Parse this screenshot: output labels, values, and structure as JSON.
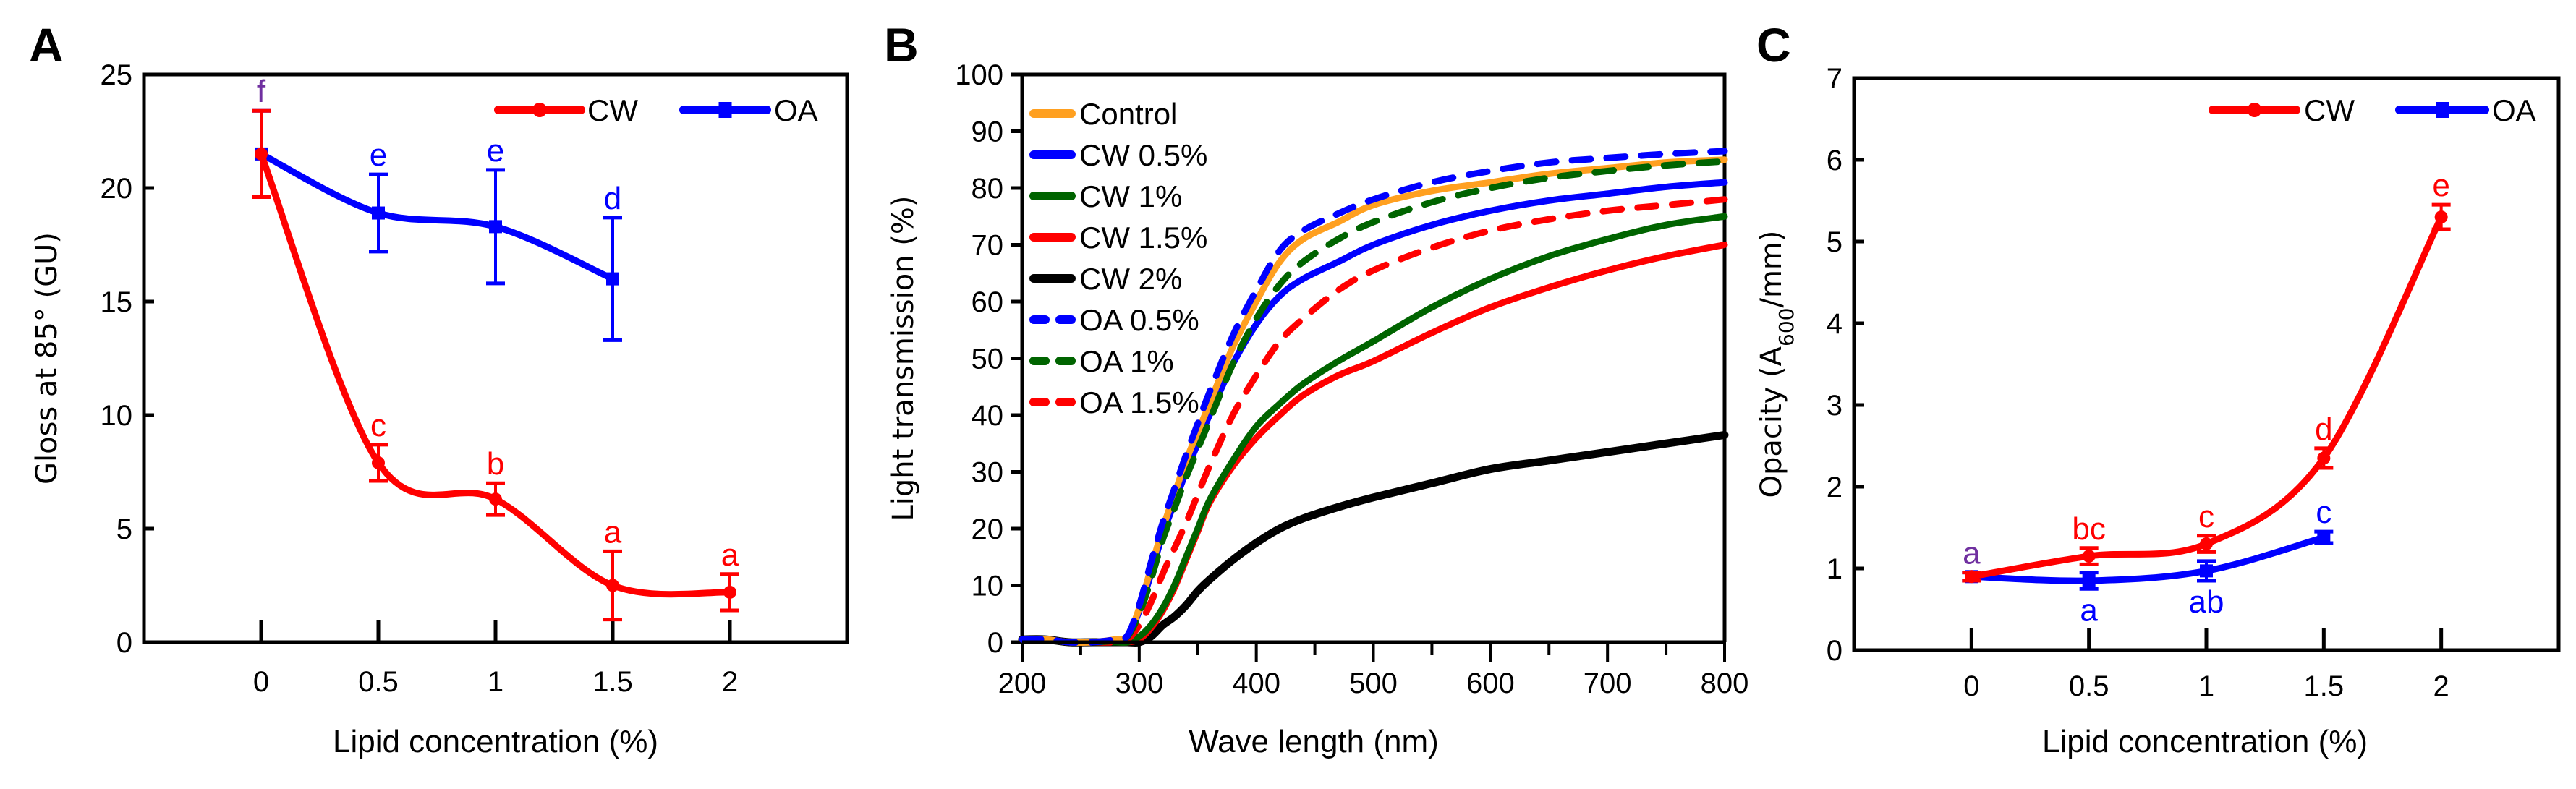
{
  "colors": {
    "red": "#FF0000",
    "blue": "#0000FF",
    "green": "#006400",
    "orange": "#FFA020",
    "black": "#000000",
    "shared_letter": "#7030A0"
  },
  "chart_data": [
    {
      "panel": "A",
      "type": "line",
      "smoothed": true,
      "xlabel": "Lipid concentration (%)",
      "ylabel": "Gloss at 85° (GU)",
      "xticks": [
        "0",
        "0.5",
        "1",
        "1.5",
        "2"
      ],
      "xlim": [
        -0.5,
        2.5
      ],
      "ylim": [
        0,
        25
      ],
      "yticks": [
        0,
        5,
        10,
        15,
        20,
        25
      ],
      "grid": false,
      "legend": "top-right",
      "series": [
        {
          "name": "CW",
          "color": "#FF0000",
          "marker": "circle",
          "x": [
            0,
            0.5,
            1,
            1.5,
            2
          ],
          "y": [
            21.5,
            7.9,
            6.3,
            2.5,
            2.2
          ],
          "error": [
            1.9,
            0.8,
            0.7,
            1.5,
            0.8
          ],
          "letters": [
            "f",
            "c",
            "b",
            "a",
            "a"
          ],
          "letter_position": "above"
        },
        {
          "name": "OA",
          "color": "#0000FF",
          "marker": "square",
          "x": [
            0,
            0.5,
            1,
            1.5
          ],
          "y": [
            21.5,
            18.9,
            18.3,
            16.0
          ],
          "error": [
            1.9,
            1.7,
            2.5,
            2.7
          ],
          "letters": [
            "f",
            "e",
            "e",
            "d"
          ],
          "letter_position": "above"
        }
      ]
    },
    {
      "panel": "B",
      "type": "line",
      "xlabel": "Wave length (nm)",
      "ylabel": "Light transmission (%)",
      "xlim": [
        200,
        800
      ],
      "ylim": [
        0,
        100
      ],
      "xticks": [
        200,
        300,
        400,
        500,
        600,
        700,
        800
      ],
      "yticks": [
        0,
        10,
        20,
        30,
        40,
        50,
        60,
        70,
        80,
        90,
        100
      ],
      "grid": false,
      "legend": "top-left",
      "x": [
        200,
        220,
        240,
        260,
        280,
        290,
        300,
        310,
        320,
        330,
        340,
        350,
        360,
        380,
        400,
        420,
        440,
        470,
        500,
        550,
        600,
        650,
        700,
        750,
        800
      ],
      "series": [
        {
          "name": "Control",
          "color": "#FFA020",
          "dash": "solid",
          "values": [
            0.5,
            0.5,
            0,
            0,
            0.5,
            1,
            6,
            13,
            20,
            26,
            32,
            37,
            42,
            52,
            60,
            67,
            71,
            74,
            77,
            79.5,
            81,
            82.5,
            83.5,
            84.5,
            85
          ]
        },
        {
          "name": "CW 0.5%",
          "color": "#0000FF",
          "dash": "solid",
          "values": [
            0.5,
            0.5,
            0,
            0,
            0.3,
            1,
            5.5,
            12,
            19,
            24.5,
            30,
            35,
            40,
            49,
            56,
            61,
            64,
            67,
            70,
            73.5,
            76,
            77.8,
            79,
            80.2,
            81
          ]
        },
        {
          "name": "CW 1%",
          "color": "#006400",
          "dash": "solid",
          "values": [
            0.5,
            0.5,
            0,
            0,
            0,
            0,
            1,
            3,
            6,
            10,
            15,
            20,
            25,
            32,
            38,
            42,
            45.5,
            49.5,
            53,
            59,
            64,
            68,
            71,
            73.5,
            75
          ]
        },
        {
          "name": "CW 1.5%",
          "color": "#FF0000",
          "dash": "solid",
          "values": [
            0.5,
            0.5,
            0,
            0,
            0,
            0,
            0.5,
            2.5,
            5.5,
            9.5,
            14.5,
            19.5,
            24.5,
            31,
            36,
            40,
            43.5,
            47,
            49.5,
            54.5,
            59,
            62.5,
            65.5,
            68,
            70
          ]
        },
        {
          "name": "CW 2%",
          "color": "#000000",
          "dash": "solid",
          "values": [
            0.5,
            0.5,
            0,
            0,
            0,
            0,
            0,
            1,
            3,
            4.5,
            6.5,
            9,
            11,
            14.5,
            17.5,
            20,
            21.8,
            23.8,
            25.5,
            28,
            30.5,
            32,
            33.5,
            35,
            36.5
          ]
        },
        {
          "name": "OA 0.5%",
          "color": "#0000FF",
          "dash": "dashed",
          "values": [
            0.5,
            0.5,
            0,
            0,
            0.5,
            1.2,
            6.5,
            14,
            21,
            27,
            33,
            38.5,
            44,
            54,
            62,
            69,
            72.5,
            75.5,
            78,
            81,
            83,
            84.5,
            85.3,
            86,
            86.5
          ]
        },
        {
          "name": "OA 1%",
          "color": "#006400",
          "dash": "dashed",
          "values": [
            0.5,
            0.5,
            0,
            0,
            0.3,
            1,
            5,
            11,
            18,
            23.5,
            29,
            34,
            39,
            49,
            57,
            63,
            67,
            71,
            74,
            77.5,
            80,
            81.8,
            83,
            84,
            84.7
          ]
        },
        {
          "name": "OA 1.5%",
          "color": "#FF0000",
          "dash": "dashed",
          "values": [
            0.5,
            0.5,
            0,
            0,
            0,
            0.5,
            3,
            7,
            12,
            16.5,
            21,
            26,
            31,
            40,
            47,
            53,
            57,
            62,
            65.5,
            69.5,
            72.5,
            74.5,
            76,
            77,
            78
          ]
        }
      ]
    },
    {
      "panel": "C",
      "type": "line",
      "smoothed": true,
      "xlabel": "Lipid concentration (%)",
      "ylabel": {
        "prefix": "Opacity (A",
        "sub": "600",
        "suffix": "/mm)"
      },
      "xticks": [
        "0",
        "0.5",
        "1",
        "1.5",
        "2"
      ],
      "xlim": [
        -0.5,
        2.5
      ],
      "ylim": [
        0,
        7
      ],
      "yticks": [
        0,
        1,
        2,
        3,
        4,
        5,
        6,
        7
      ],
      "grid": false,
      "legend": "top-right",
      "series": [
        {
          "name": "CW",
          "color": "#FF0000",
          "marker": "circle",
          "x": [
            0,
            0.5,
            1,
            1.5,
            2
          ],
          "y": [
            0.9,
            1.15,
            1.3,
            2.35,
            5.3
          ],
          "error": [
            0.05,
            0.1,
            0.1,
            0.12,
            0.15
          ],
          "letters": [
            "a",
            "bc",
            "c",
            "d",
            "e"
          ],
          "letter_position": "above"
        },
        {
          "name": "OA",
          "color": "#0000FF",
          "marker": "square",
          "x": [
            0,
            0.5,
            1,
            1.5
          ],
          "y": [
            0.9,
            0.85,
            0.97,
            1.38
          ],
          "error": [
            0.05,
            0.1,
            0.12,
            0.07
          ],
          "letters": [
            "a",
            "a",
            "ab",
            "c"
          ],
          "letter_position": [
            "above",
            "below",
            "below",
            "above"
          ]
        }
      ]
    }
  ]
}
